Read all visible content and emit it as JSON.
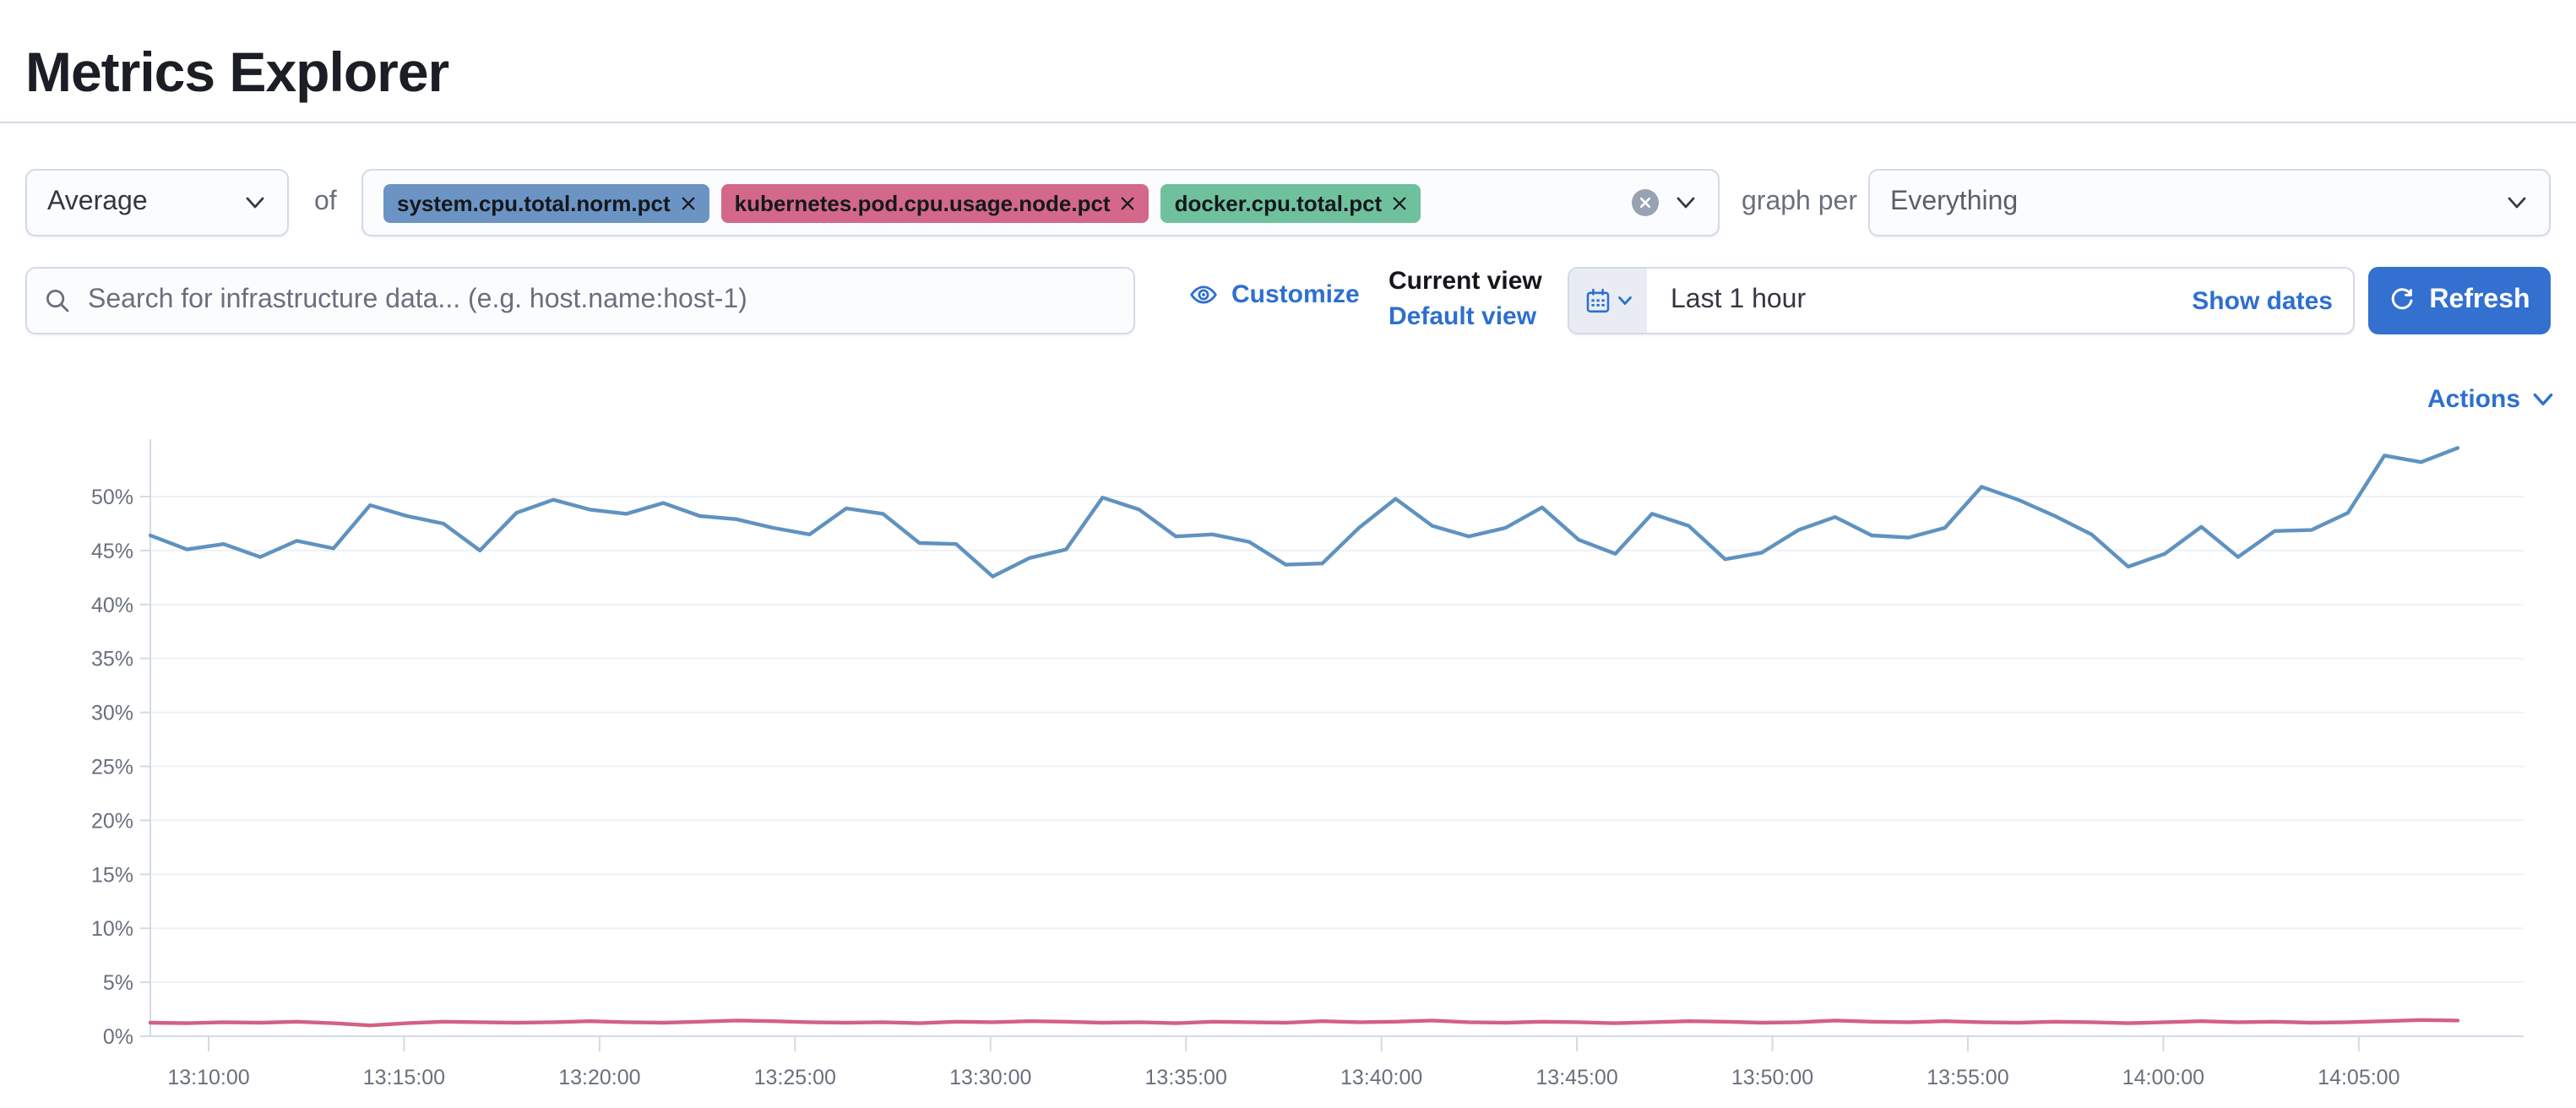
{
  "page": {
    "title": "Metrics Explorer"
  },
  "toolbar": {
    "aggregation": {
      "value": "Average"
    },
    "of_label": "of",
    "metrics": [
      {
        "label": "system.cpu.total.norm.pct",
        "color": "#6b94c4"
      },
      {
        "label": "kubernetes.pod.cpu.usage.node.pct",
        "color": "#d4688a"
      },
      {
        "label": "docker.cpu.total.pct",
        "color": "#6fc19e"
      }
    ],
    "graph_per_label": "graph per",
    "group_by": {
      "value": "Everything"
    }
  },
  "search": {
    "placeholder": "Search for infrastructure data... (e.g. host.name:host-1)"
  },
  "view_controls": {
    "customize_label": "Customize",
    "current_view_label": "Current view",
    "view_name": "Default view"
  },
  "datepicker": {
    "value": "Last 1 hour",
    "show_dates_label": "Show dates",
    "refresh_label": "Refresh"
  },
  "actions_label": "Actions",
  "chart_data": {
    "type": "line",
    "unit": "%",
    "ylim": [
      0,
      55
    ],
    "y_ticks": [
      0,
      5,
      10,
      15,
      20,
      25,
      30,
      35,
      40,
      45,
      50
    ],
    "x_tick_labels": [
      "13:10:00",
      "13:15:00",
      "13:20:00",
      "13:25:00",
      "13:30:00",
      "13:35:00",
      "13:40:00",
      "13:45:00",
      "13:50:00",
      "13:55:00",
      "14:00:00",
      "14:05:00"
    ],
    "x_range": [
      "13:08:30",
      "14:07:30"
    ],
    "grid": true,
    "legend": false,
    "series": [
      {
        "name": "system.cpu.total.norm.pct (avg)",
        "color": "#6092C0",
        "values": [
          46.4,
          45.1,
          45.6,
          44.4,
          45.9,
          45.2,
          49.2,
          48.2,
          47.5,
          45.0,
          48.5,
          49.7,
          48.8,
          48.4,
          49.4,
          48.2,
          47.9,
          47.1,
          46.5,
          48.9,
          48.4,
          45.7,
          45.6,
          42.6,
          44.3,
          45.1,
          49.9,
          48.8,
          46.3,
          46.5,
          45.8,
          43.7,
          43.8,
          47.1,
          49.8,
          47.3,
          46.3,
          47.1,
          49.0,
          46.0,
          44.7,
          48.4,
          47.3,
          44.2,
          44.8,
          46.9,
          48.1,
          46.4,
          46.2,
          47.1,
          50.9,
          49.7,
          48.2,
          46.5,
          43.5,
          44.7,
          47.2,
          44.4,
          46.8,
          46.9,
          48.5,
          53.8,
          53.2,
          54.5
        ]
      },
      {
        "name": "kubernetes.pod.cpu.usage.node.pct (avg)",
        "color": "#D36086",
        "values": [
          1.25,
          1.2,
          1.3,
          1.25,
          1.35,
          1.2,
          1.0,
          1.2,
          1.35,
          1.3,
          1.25,
          1.3,
          1.4,
          1.3,
          1.25,
          1.35,
          1.45,
          1.4,
          1.3,
          1.25,
          1.3,
          1.2,
          1.35,
          1.3,
          1.4,
          1.35,
          1.25,
          1.3,
          1.2,
          1.35,
          1.3,
          1.25,
          1.4,
          1.3,
          1.35,
          1.45,
          1.3,
          1.25,
          1.35,
          1.3,
          1.2,
          1.3,
          1.4,
          1.35,
          1.25,
          1.3,
          1.45,
          1.35,
          1.3,
          1.4,
          1.3,
          1.25,
          1.35,
          1.3,
          1.2,
          1.3,
          1.4,
          1.3,
          1.35,
          1.25,
          1.3,
          1.4,
          1.5,
          1.45
        ]
      }
    ]
  }
}
